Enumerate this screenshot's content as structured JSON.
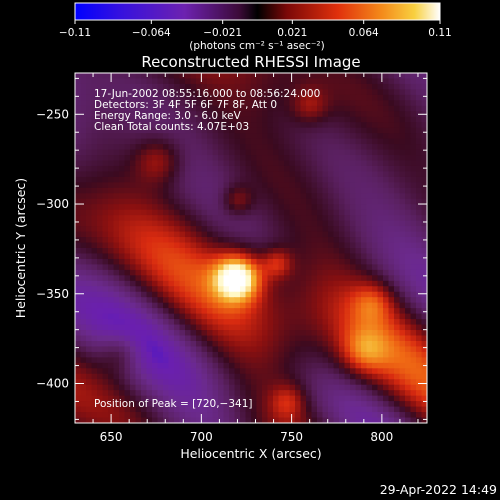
{
  "chart_data": {
    "type": "heatmap",
    "title": "Reconstructed RHESSI Image",
    "xlabel": "Heliocentric X (arcsec)",
    "ylabel": "Heliocentric Y (arcsec)",
    "xlim": [
      630,
      825
    ],
    "ylim": [
      -422,
      -227
    ],
    "x_ticks": [
      650,
      700,
      750,
      800
    ],
    "y_ticks": [
      -250,
      -300,
      -350,
      -400
    ],
    "x_tick_labels": [
      "650",
      "700",
      "750",
      "800"
    ],
    "y_tick_labels": [
      "−250",
      "−300",
      "−350",
      "−400"
    ],
    "annotations": [
      "17-Jun-2002 08:55:16.000 to 08:56:24.000",
      "Detectors: 3F 4F 5F 6F 7F 8F, Att 0",
      "Energy Range: 3.0 - 6.0 keV",
      "Clean    Total counts: 4.07E+03"
    ],
    "peak_label": "Position of Peak = [720,−341]",
    "peak_position": [
      720,
      -341
    ],
    "colorbar": {
      "min": -0.11,
      "max": 0.11,
      "tick_labels": [
        "−0.11",
        "−0.064",
        "−0.021",
        "0.021",
        "0.064",
        "0.11"
      ],
      "units": "(photons cm⁻² s⁻¹ asec⁻²)"
    },
    "grid": false
  },
  "footer": {
    "timestamp": "29-Apr-2022 14:49"
  },
  "colors": {
    "background": "#000000",
    "axes": "#ffffff",
    "colormap": [
      "#0000ff",
      "#6a1fb0",
      "#6b2a8c",
      "#5a2060",
      "#3a0a20",
      "#8a1010",
      "#d82a10",
      "#f06a14",
      "#f5b030",
      "#fff7c0",
      "#ffffff"
    ]
  }
}
